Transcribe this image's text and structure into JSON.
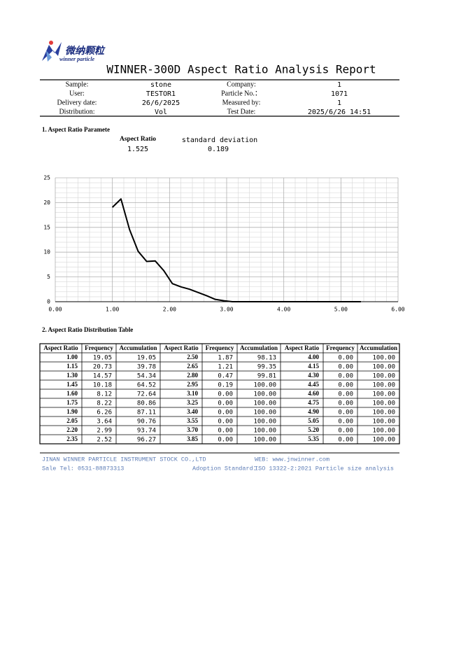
{
  "header": {
    "logo_cn": "微纳颗粒",
    "logo_en": "winner particle",
    "title": "WINNER-300D Aspect Ratio Analysis Report"
  },
  "info": [
    [
      "Sample:",
      "stone",
      "Company:",
      "1"
    ],
    [
      "User:",
      "TESTOR1",
      "Particle No.：",
      "1071"
    ],
    [
      "Delivery date:",
      "26/6/2025",
      "Measured by:",
      "1"
    ],
    [
      "Distribution:",
      "Vol",
      "Test Date:",
      "2025/6/26 14:51"
    ]
  ],
  "parameters": {
    "heading": "1. Aspect Ratio Paramete",
    "aspect_ratio_label": "Aspect Ratio",
    "aspect_ratio": "1.525",
    "std_label": "standard deviation",
    "std": "0.189"
  },
  "chart_data": {
    "type": "line",
    "x": [
      1.0,
      1.15,
      1.3,
      1.45,
      1.6,
      1.75,
      1.9,
      2.05,
      2.2,
      2.35,
      2.5,
      2.65,
      2.8,
      2.95,
      3.1,
      3.25,
      3.4,
      3.55,
      3.7,
      3.85,
      4.0,
      4.15,
      4.3,
      4.45,
      4.6,
      4.75,
      4.9,
      5.05,
      5.2,
      5.35
    ],
    "series": [
      {
        "color": "#000000",
        "values": [
          19.05,
          20.73,
          14.57,
          10.18,
          8.12,
          8.22,
          6.26,
          3.64,
          2.99,
          2.52,
          1.87,
          1.21,
          0.47,
          0.19,
          0,
          0,
          0,
          0,
          0,
          0,
          0,
          0,
          0,
          0,
          0,
          0,
          0,
          0,
          0,
          0
        ]
      }
    ],
    "xlim": [
      0,
      6
    ],
    "xticks": [
      {
        "value": 0,
        "label": "0.00"
      },
      {
        "value": 1,
        "label": "1.00"
      },
      {
        "value": 2,
        "label": "2.00"
      },
      {
        "value": 3,
        "label": "3.00"
      },
      {
        "value": 4,
        "label": "4.00"
      },
      {
        "value": 5,
        "label": "5.00"
      },
      {
        "value": 6,
        "label": "6.00"
      }
    ],
    "ylim": [
      0,
      25
    ],
    "yticks": [
      0,
      5,
      10,
      15,
      20,
      25
    ],
    "grid": true
  },
  "table": {
    "heading": "2. Aspect Ratio Distribution Table",
    "columns": [
      "Aspect Ratio",
      "Frequency",
      "Accumulation",
      "Aspect Ratio",
      "Frequency",
      "Accumulation",
      "Aspect Ratio",
      "Frequency",
      "Accumulation"
    ],
    "rows": [
      [
        "1.00",
        "19.05",
        "19.05",
        "2.50",
        "1.87",
        "98.13",
        "4.00",
        "0.00",
        "100.00"
      ],
      [
        "1.15",
        "20.73",
        "39.78",
        "2.65",
        "1.21",
        "99.35",
        "4.15",
        "0.00",
        "100.00"
      ],
      [
        "1.30",
        "14.57",
        "54.34",
        "2.80",
        "0.47",
        "99.81",
        "4.30",
        "0.00",
        "100.00"
      ],
      [
        "1.45",
        "10.18",
        "64.52",
        "2.95",
        "0.19",
        "100.00",
        "4.45",
        "0.00",
        "100.00"
      ],
      [
        "1.60",
        "8.12",
        "72.64",
        "3.10",
        "0.00",
        "100.00",
        "4.60",
        "0.00",
        "100.00"
      ],
      [
        "1.75",
        "8.22",
        "80.86",
        "3.25",
        "0.00",
        "100.00",
        "4.75",
        "0.00",
        "100.00"
      ],
      [
        "1.90",
        "6.26",
        "87.11",
        "3.40",
        "0.00",
        "100.00",
        "4.90",
        "0.00",
        "100.00"
      ],
      [
        "2.05",
        "3.64",
        "90.76",
        "3.55",
        "0.00",
        "100.00",
        "5.05",
        "0.00",
        "100.00"
      ],
      [
        "2.20",
        "2.99",
        "93.74",
        "3.70",
        "0.00",
        "100.00",
        "5.20",
        "0.00",
        "100.00"
      ],
      [
        "2.35",
        "2.52",
        "96.27",
        "3.85",
        "0.00",
        "100.00",
        "5.35",
        "0.00",
        "100.00"
      ]
    ]
  },
  "footer": {
    "company": "JINAN WINNER PARTICLE INSTRUMENT STOCK CO.,LTD",
    "web": "WEB: www.jnwinner.com",
    "tel": "Sale Tel: 0531-88873313",
    "standard_label": "Adoption Standard：",
    "standard": "ISO 13322-2:2021 Particle size analysis"
  }
}
